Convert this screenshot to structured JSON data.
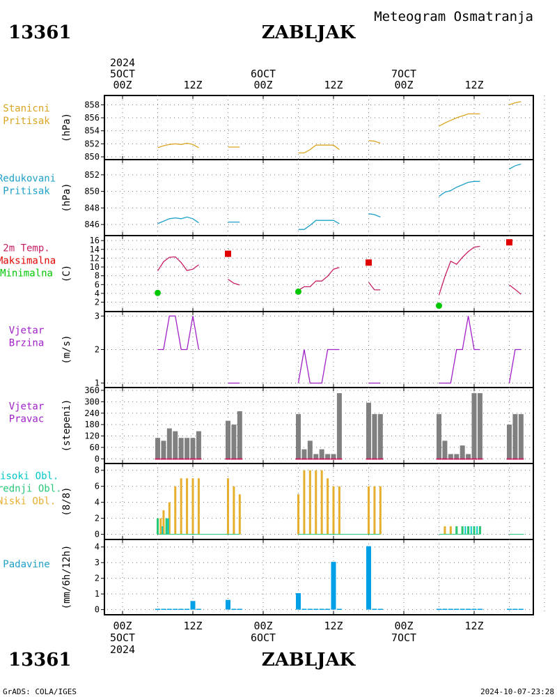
{
  "header": {
    "station_id": "13361",
    "station_name": "ZABLJAK",
    "title": "Meteogram Osmatranja"
  },
  "footer": {
    "credit": "GrADS: COLA/IGES",
    "timestamp": "2024-10-07-23:28"
  },
  "time_axis": {
    "hours_total": 72,
    "ticks": [
      {
        "hour": 0,
        "label": "00Z",
        "day": "5OCT",
        "year": "2024"
      },
      {
        "hour": 12,
        "label": "12Z"
      },
      {
        "hour": 24,
        "label": "00Z",
        "day": "6OCT"
      },
      {
        "hour": 36,
        "label": "12Z"
      },
      {
        "hour": 48,
        "label": "00Z",
        "day": "7OCT"
      },
      {
        "hour": 60,
        "label": "12Z"
      }
    ]
  },
  "colors": {
    "pressure": "#daa520",
    "reduced_pressure": "#1ea0c8",
    "tmax": "#e00000",
    "tmin": "#00c800",
    "temp_line": "#c81e64",
    "wind": "#a020c8",
    "wind_dir_bar": "#808080",
    "wind_dir_base": "#c81e64",
    "cloud_high": "#00c8c8",
    "cloud_mid": "#28c878",
    "cloud_low": "#e6af2d",
    "precip": "#00a0e6"
  },
  "chart_data": [
    {
      "type": "line",
      "panel": "station_pressure",
      "labels": [
        "Stanicni",
        "Pritisak"
      ],
      "unit": "(hPa)",
      "ylim": [
        850,
        859
      ],
      "yticks": [
        850,
        852,
        854,
        856,
        858
      ],
      "series": [
        {
          "color_key": "pressure",
          "segments": [
            [
              [
                6,
                851.4
              ],
              [
                7,
                851.7
              ],
              [
                8,
                851.9
              ],
              [
                9,
                852.0
              ],
              [
                10,
                851.9
              ],
              [
                11,
                852.1
              ],
              [
                12,
                851.9
              ],
              [
                13,
                851.4
              ]
            ],
            [
              [
                18,
                851.5
              ],
              [
                20,
                851.5
              ]
            ],
            [
              [
                30,
                850.6
              ],
              [
                31,
                850.6
              ],
              [
                32,
                851.1
              ],
              [
                33,
                851.8
              ],
              [
                34,
                851.8
              ],
              [
                35,
                851.8
              ],
              [
                36,
                851.8
              ],
              [
                37,
                851.1
              ]
            ],
            [
              [
                42,
                852.5
              ],
              [
                43,
                852.4
              ],
              [
                44,
                852.1
              ]
            ],
            [
              [
                54,
                854.7
              ],
              [
                55,
                855.2
              ],
              [
                56,
                855.6
              ],
              [
                57,
                856.0
              ],
              [
                58,
                856.3
              ],
              [
                59,
                856.6
              ],
              [
                60,
                856.6
              ],
              [
                61,
                856.6
              ]
            ],
            [
              [
                66,
                858.0
              ],
              [
                67,
                858.3
              ],
              [
                68,
                858.5
              ]
            ]
          ]
        }
      ]
    },
    {
      "type": "line",
      "panel": "reduced_pressure",
      "labels": [
        "Redukovani",
        "Pritisak"
      ],
      "unit": "(hPa)",
      "ylim": [
        845,
        853.5
      ],
      "yticks": [
        846,
        848,
        850,
        852
      ],
      "series": [
        {
          "color_key": "reduced_pressure",
          "segments": [
            [
              [
                6,
                846.1
              ],
              [
                7,
                846.4
              ],
              [
                8,
                846.7
              ],
              [
                9,
                846.8
              ],
              [
                10,
                846.7
              ],
              [
                11,
                846.9
              ],
              [
                12,
                846.7
              ],
              [
                13,
                846.2
              ]
            ],
            [
              [
                18,
                846.3
              ],
              [
                20,
                846.3
              ]
            ],
            [
              [
                30,
                845.4
              ],
              [
                31,
                845.4
              ],
              [
                32,
                845.9
              ],
              [
                33,
                846.5
              ],
              [
                34,
                846.5
              ],
              [
                35,
                846.5
              ],
              [
                36,
                846.5
              ],
              [
                37,
                846.1
              ]
            ],
            [
              [
                42,
                847.3
              ],
              [
                43,
                847.2
              ],
              [
                44,
                846.9
              ]
            ],
            [
              [
                54,
                849.4
              ],
              [
                55,
                849.9
              ],
              [
                56,
                850.1
              ],
              [
                57,
                850.5
              ],
              [
                58,
                850.8
              ],
              [
                59,
                851.1
              ],
              [
                60,
                851.2
              ],
              [
                61,
                851.2
              ]
            ],
            [
              [
                66,
                852.7
              ],
              [
                67,
                853.1
              ],
              [
                68,
                853.3
              ]
            ]
          ]
        }
      ]
    },
    {
      "type": "line",
      "panel": "temperature",
      "labels": [
        "2m Temp.",
        "Maksimalna",
        "Minimalna"
      ],
      "unit": "(C)",
      "ylim": [
        0.5,
        16.5
      ],
      "yticks": [
        2,
        4,
        6,
        8,
        10,
        12,
        14,
        16
      ],
      "series": [
        {
          "color_key": "temp_line",
          "segments": [
            [
              [
                6,
                9.1
              ],
              [
                7,
                11.2
              ],
              [
                8,
                12.2
              ],
              [
                9,
                12.3
              ],
              [
                10,
                11.0
              ],
              [
                11,
                9.2
              ],
              [
                12,
                9.5
              ],
              [
                13,
                10.5
              ]
            ],
            [
              [
                18,
                7.2
              ],
              [
                19,
                6.3
              ],
              [
                20,
                5.9
              ]
            ],
            [
              [
                30,
                4.7
              ],
              [
                31,
                5.5
              ],
              [
                32,
                5.5
              ],
              [
                33,
                6.8
              ],
              [
                34,
                6.8
              ],
              [
                35,
                7.9
              ],
              [
                36,
                9.5
              ],
              [
                37,
                9.9
              ]
            ],
            [
              [
                42,
                6.5
              ],
              [
                43,
                4.8
              ],
              [
                44,
                4.8
              ]
            ],
            [
              [
                54,
                3.6
              ],
              [
                55,
                7.8
              ],
              [
                56,
                11.3
              ],
              [
                57,
                10.6
              ],
              [
                58,
                12.2
              ],
              [
                59,
                13.5
              ],
              [
                60,
                14.5
              ],
              [
                61,
                14.7
              ]
            ],
            [
              [
                66,
                5.9
              ],
              [
                67,
                4.9
              ],
              [
                68,
                3.8
              ]
            ]
          ]
        }
      ],
      "tmax_points": [
        [
          18,
          13.0
        ],
        [
          42,
          11.0
        ],
        [
          66,
          15.6
        ]
      ],
      "tmin_points": [
        [
          6,
          4.1
        ],
        [
          30,
          4.4
        ],
        [
          54,
          1.2
        ]
      ]
    },
    {
      "type": "line",
      "panel": "wind_speed",
      "labels": [
        "Vjetar",
        "Brzina"
      ],
      "unit": "(m/s)",
      "ylim": [
        0.95,
        3.05
      ],
      "yticks": [
        1,
        2,
        3
      ],
      "series": [
        {
          "color_key": "wind",
          "segments": [
            [
              [
                6,
                2
              ],
              [
                7,
                2
              ],
              [
                8,
                3
              ],
              [
                9,
                3
              ],
              [
                10,
                2
              ],
              [
                11,
                2
              ],
              [
                12,
                3
              ],
              [
                13,
                2
              ]
            ],
            [
              [
                18,
                1
              ],
              [
                20,
                1
              ]
            ],
            [
              [
                30,
                1
              ],
              [
                31,
                2
              ],
              [
                32,
                1
              ],
              [
                33,
                1
              ],
              [
                34,
                1
              ],
              [
                35,
                2
              ],
              [
                36,
                2
              ],
              [
                37,
                2
              ]
            ],
            [
              [
                42,
                1
              ],
              [
                44,
                1
              ]
            ],
            [
              [
                54,
                1
              ],
              [
                55,
                1
              ],
              [
                56,
                1
              ],
              [
                57,
                2
              ],
              [
                58,
                2
              ],
              [
                59,
                3
              ],
              [
                60,
                2
              ],
              [
                61,
                2
              ]
            ],
            [
              [
                66,
                1
              ],
              [
                67,
                2
              ],
              [
                68,
                2
              ]
            ]
          ]
        }
      ]
    },
    {
      "type": "bar",
      "panel": "wind_direction",
      "labels": [
        "Vjetar",
        "Pravac"
      ],
      "unit": "(stepeni)",
      "ylim": [
        -10,
        360
      ],
      "yticks": [
        0,
        60,
        120,
        180,
        240,
        300,
        360
      ],
      "color_key": "wind_dir_bar",
      "values": [
        [
          6,
          110
        ],
        [
          7,
          95
        ],
        [
          8,
          160
        ],
        [
          9,
          145
        ],
        [
          10,
          110
        ],
        [
          11,
          110
        ],
        [
          12,
          110
        ],
        [
          13,
          145
        ],
        [
          18,
          200
        ],
        [
          19,
          180
        ],
        [
          20,
          250
        ],
        [
          30,
          235
        ],
        [
          31,
          50
        ],
        [
          32,
          95
        ],
        [
          33,
          25
        ],
        [
          34,
          50
        ],
        [
          35,
          25
        ],
        [
          36,
          25
        ],
        [
          37,
          345
        ],
        [
          42,
          295
        ],
        [
          43,
          235
        ],
        [
          44,
          235
        ],
        [
          54,
          235
        ],
        [
          55,
          95
        ],
        [
          56,
          25
        ],
        [
          57,
          25
        ],
        [
          58,
          70
        ],
        [
          59,
          25
        ],
        [
          60,
          345
        ],
        [
          61,
          345
        ],
        [
          66,
          180
        ],
        [
          67,
          235
        ],
        [
          68,
          235
        ]
      ]
    },
    {
      "type": "bar",
      "panel": "cloud_cover",
      "labels": [
        "Visoki Obl.",
        "Srednji Obl.",
        "Niski Obl."
      ],
      "unit": "(8/8)",
      "ylim": [
        -0.3,
        8.5
      ],
      "yticks": [
        0,
        2,
        4,
        6,
        8
      ],
      "low": [
        [
          6,
          1
        ],
        [
          6.5,
          2
        ],
        [
          7,
          3
        ],
        [
          7.5,
          1
        ],
        [
          8,
          4
        ],
        [
          9,
          6
        ],
        [
          10,
          7
        ],
        [
          11,
          7
        ],
        [
          12,
          7
        ],
        [
          13,
          7
        ],
        [
          18,
          7
        ],
        [
          19,
          6
        ],
        [
          20,
          5
        ],
        [
          30,
          5
        ],
        [
          31,
          8
        ],
        [
          32,
          8
        ],
        [
          33,
          8
        ],
        [
          34,
          8
        ],
        [
          35,
          7
        ],
        [
          36,
          6
        ],
        [
          37,
          6
        ],
        [
          42,
          6
        ],
        [
          43,
          6
        ],
        [
          44,
          6
        ],
        [
          55,
          1
        ],
        [
          56,
          1
        ],
        [
          57,
          1
        ],
        [
          58,
          1
        ],
        [
          59,
          1
        ],
        [
          60,
          1
        ],
        [
          61,
          1
        ]
      ],
      "mid": [
        [
          6,
          2
        ],
        [
          7.5,
          2
        ],
        [
          57,
          1
        ],
        [
          58,
          1
        ],
        [
          59,
          1
        ],
        [
          60,
          1
        ],
        [
          61,
          1
        ]
      ],
      "high": [
        [
          6.8,
          1
        ],
        [
          7.8,
          2
        ],
        [
          58.5,
          1
        ],
        [
          59.5,
          1
        ],
        [
          60.5,
          1
        ]
      ]
    },
    {
      "type": "bar",
      "panel": "precipitation",
      "labels": [
        "Padavine"
      ],
      "unit": "(mm/6h/12h)",
      "ylim": [
        -0.15,
        4.3
      ],
      "yticks": [
        0,
        1,
        2,
        3,
        4
      ],
      "color_key": "precip",
      "values": [
        [
          6,
          0.05
        ],
        [
          7,
          0.05
        ],
        [
          8,
          0.05
        ],
        [
          9,
          0.05
        ],
        [
          10,
          0.05
        ],
        [
          11,
          0.05
        ],
        [
          12,
          0.55
        ],
        [
          13,
          0.05
        ],
        [
          18,
          0.62
        ],
        [
          19,
          0.05
        ],
        [
          20,
          0.05
        ],
        [
          30,
          1.05
        ],
        [
          31,
          0.05
        ],
        [
          32,
          0.05
        ],
        [
          33,
          0.05
        ],
        [
          34,
          0.05
        ],
        [
          35,
          0.05
        ],
        [
          36,
          3.05
        ],
        [
          37,
          0.05
        ],
        [
          42,
          4.05
        ],
        [
          43,
          0.05
        ],
        [
          44,
          0.05
        ],
        [
          54,
          0.05
        ],
        [
          55,
          0.05
        ],
        [
          56,
          0.05
        ],
        [
          57,
          0.05
        ],
        [
          58,
          0.05
        ],
        [
          59,
          0.05
        ],
        [
          60,
          0.05
        ],
        [
          61,
          0.05
        ],
        [
          66,
          0.05
        ],
        [
          67,
          0.05
        ],
        [
          68,
          0.05
        ]
      ]
    }
  ]
}
